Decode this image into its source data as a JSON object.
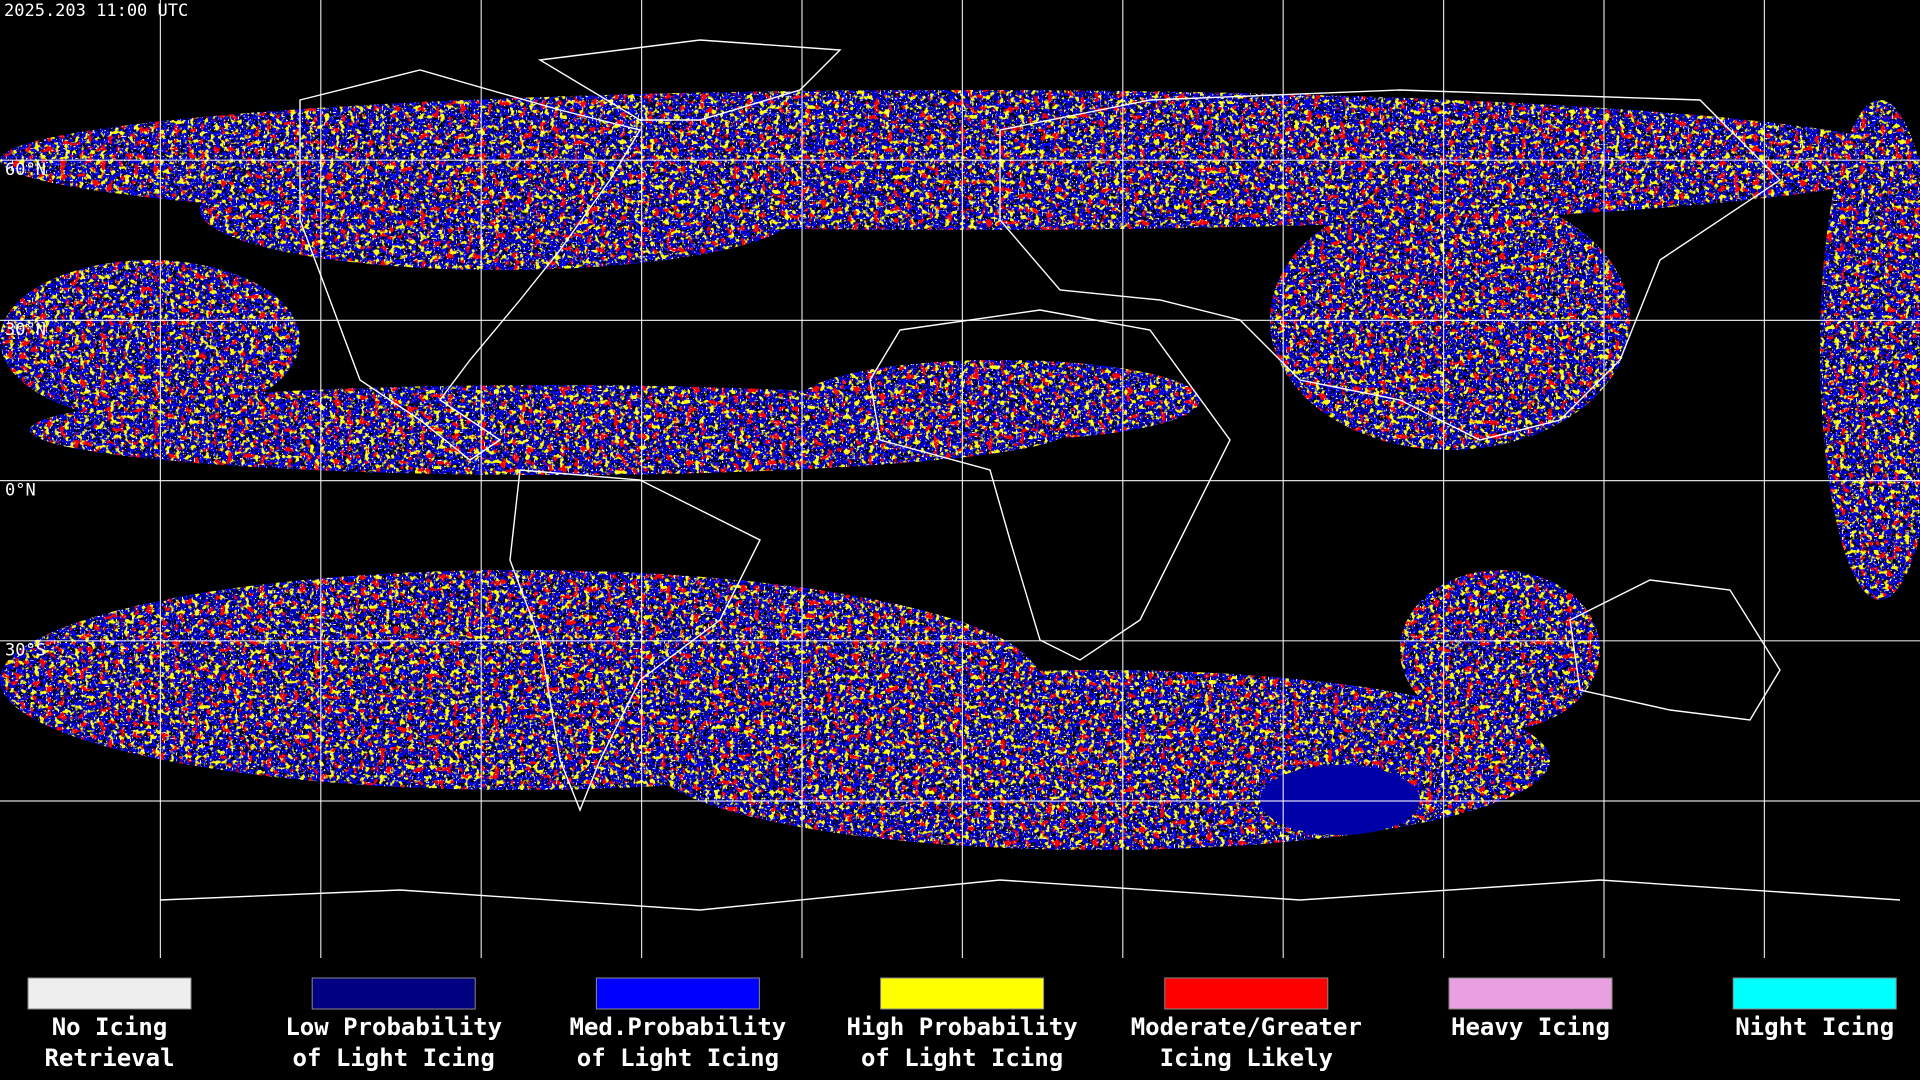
{
  "header": {
    "timestamp": "2025.203 11:00 UTC"
  },
  "map": {
    "latitude_labels": [
      "60°N",
      "30°N",
      "0°N",
      "30°S"
    ]
  },
  "legend": {
    "items": [
      {
        "lines": [
          "No Icing",
          "Retrieval"
        ],
        "color": "#eeeeee"
      },
      {
        "lines": [
          "Low Probability",
          "of Light Icing"
        ],
        "color": "#000080"
      },
      {
        "lines": [
          "Med.Probability",
          "of Light Icing"
        ],
        "color": "#0000ff"
      },
      {
        "lines": [
          "High Probability",
          "of Light Icing"
        ],
        "color": "#ffff00"
      },
      {
        "lines": [
          "Moderate/Greater",
          "Icing Likely"
        ],
        "color": "#ff0000"
      },
      {
        "lines": [
          "Heavy Icing"
        ],
        "color": "#e8a0e0"
      },
      {
        "lines": [
          "Night Icing"
        ],
        "color": "#00ffff"
      }
    ]
  }
}
